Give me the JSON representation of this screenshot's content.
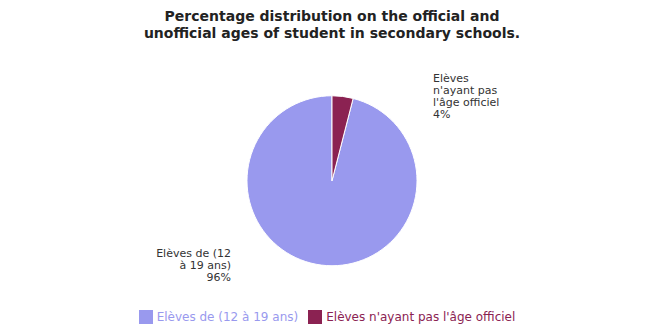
{
  "chart_data": {
    "type": "pie",
    "title": "Percentage distribution on the official and\nunofficial ages of student in secondary schools.",
    "categories": [
      "Elèves de (12 à 19 ans)",
      "Elèves n'ayant pas l'âge officiel"
    ],
    "values": [
      96,
      4
    ],
    "colors": [
      "#9999ee",
      "#8B2252"
    ],
    "value_labels": [
      "Elèves de (12\nà 19 ans)\n96%",
      "Elèves\nn'ayant pas\nl'âge officiel\n4%"
    ],
    "data_labels": true,
    "legend": "bottom"
  }
}
